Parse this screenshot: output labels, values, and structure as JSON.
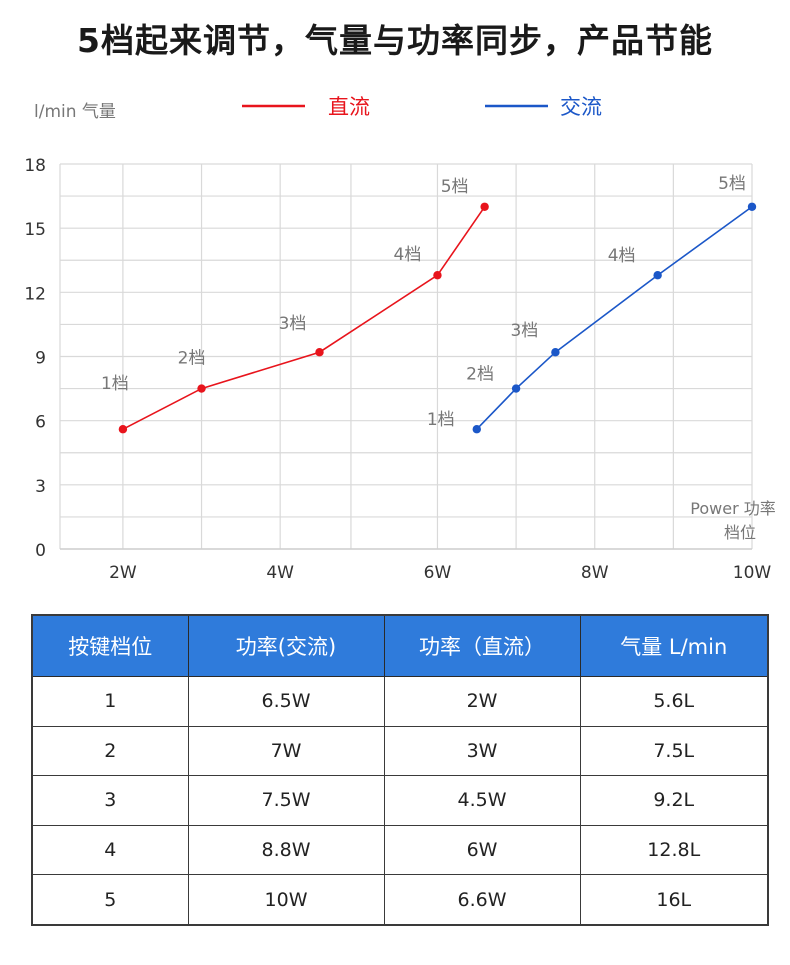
{
  "page": {
    "title": "5档起来调节，气量与功率同步，产品节能"
  },
  "chart_data": {
    "type": "line",
    "ylabel": "l/min 气量",
    "xlabel": [
      "Power 功率",
      "档位"
    ],
    "xlim": [
      1.2,
      10
    ],
    "ylim": [
      0,
      18
    ],
    "x_ticks": [
      {
        "value": 2,
        "label": "2W"
      },
      {
        "value": 4,
        "label": "4W"
      },
      {
        "value": 6,
        "label": "6W"
      },
      {
        "value": 8,
        "label": "8W"
      },
      {
        "value": 10,
        "label": "10W"
      }
    ],
    "y_ticks": [
      0,
      3,
      6,
      9,
      12,
      15,
      18
    ],
    "grid": true,
    "legend_position": "top",
    "series": [
      {
        "name": "直流",
        "color": "#e8141c",
        "points": [
          {
            "x": 2,
            "y": 5.6,
            "label": "1档"
          },
          {
            "x": 3,
            "y": 7.5,
            "label": "2档"
          },
          {
            "x": 4.5,
            "y": 9.2,
            "label": "3档"
          },
          {
            "x": 6,
            "y": 12.8,
            "label": "4档"
          },
          {
            "x": 6.6,
            "y": 16,
            "label": "5档"
          }
        ]
      },
      {
        "name": "交流",
        "color": "#1b57c8",
        "points": [
          {
            "x": 6.5,
            "y": 5.6,
            "label": "1档"
          },
          {
            "x": 7,
            "y": 7.5,
            "label": "2档"
          },
          {
            "x": 7.5,
            "y": 9.2,
            "label": "3档"
          },
          {
            "x": 8.8,
            "y": 12.8,
            "label": "4档"
          },
          {
            "x": 10,
            "y": 16,
            "label": "5档"
          }
        ]
      }
    ]
  },
  "table": {
    "header_color": "#2f7bdb",
    "columns": [
      "按键档位",
      "功率(交流)",
      "功率（直流）",
      "气量 L/min"
    ],
    "rows": [
      [
        "1",
        "6.5W",
        "2W",
        "5.6L"
      ],
      [
        "2",
        "7W",
        "3W",
        "7.5L"
      ],
      [
        "3",
        "7.5W",
        "4.5W",
        "9.2L"
      ],
      [
        "4",
        "8.8W",
        "6W",
        "12.8L"
      ],
      [
        "5",
        "10W",
        "6.6W",
        "16L"
      ]
    ]
  }
}
